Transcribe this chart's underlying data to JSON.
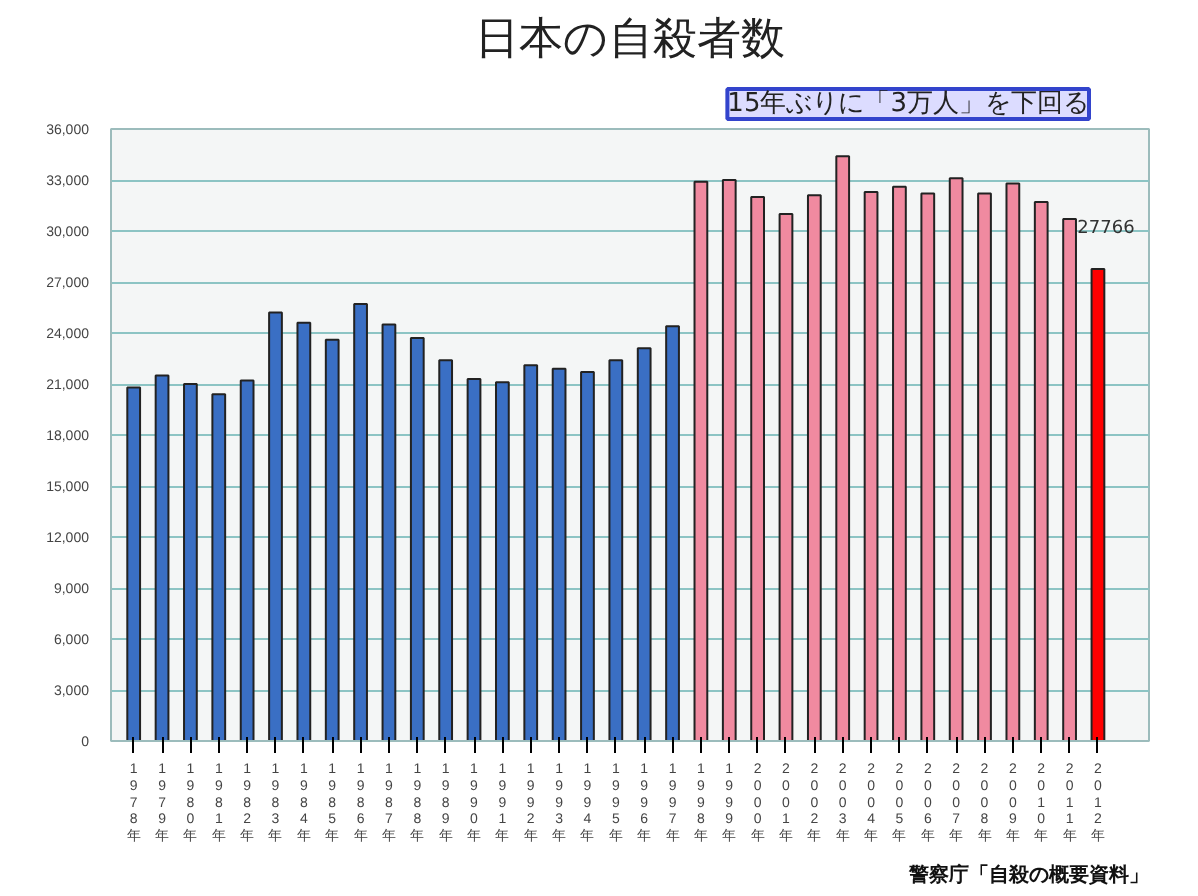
{
  "chart_data": {
    "type": "bar",
    "title": "日本の自殺者数",
    "categories": [
      "1978年",
      "1979年",
      "1980年",
      "1981年",
      "1982年",
      "1983年",
      "1984年",
      "1985年",
      "1986年",
      "1987年",
      "1988年",
      "1989年",
      "1990年",
      "1991年",
      "1992年",
      "1993年",
      "1994年",
      "1995年",
      "1996年",
      "1997年",
      "1998年",
      "1999年",
      "2000年",
      "2001年",
      "2002年",
      "2003年",
      "2004年",
      "2005年",
      "2006年",
      "2007年",
      "2008年",
      "2009年",
      "2010年",
      "2011年",
      "2012年"
    ],
    "values": [
      20800,
      21500,
      21000,
      20400,
      21200,
      25200,
      24600,
      23600,
      25700,
      24500,
      23700,
      22400,
      21300,
      21100,
      22100,
      21900,
      21700,
      22400,
      23100,
      24400,
      32900,
      33000,
      32000,
      31000,
      32100,
      34400,
      32300,
      32600,
      32200,
      33100,
      32200,
      32800,
      31700,
      30700,
      27766
    ],
    "colors": [
      "#3a6fc4",
      "#3a6fc4",
      "#3a6fc4",
      "#3a6fc4",
      "#3a6fc4",
      "#3a6fc4",
      "#3a6fc4",
      "#3a6fc4",
      "#3a6fc4",
      "#3a6fc4",
      "#3a6fc4",
      "#3a6fc4",
      "#3a6fc4",
      "#3a6fc4",
      "#3a6fc4",
      "#3a6fc4",
      "#3a6fc4",
      "#3a6fc4",
      "#3a6fc4",
      "#3a6fc4",
      "#f08aa0",
      "#f08aa0",
      "#f08aa0",
      "#f08aa0",
      "#f08aa0",
      "#f08aa0",
      "#f08aa0",
      "#f08aa0",
      "#f08aa0",
      "#f08aa0",
      "#f08aa0",
      "#f08aa0",
      "#f08aa0",
      "#f08aa0",
      "#ff0000"
    ],
    "value_labels": [
      null,
      null,
      null,
      null,
      null,
      null,
      null,
      null,
      null,
      null,
      null,
      null,
      null,
      null,
      null,
      null,
      null,
      null,
      null,
      null,
      null,
      null,
      null,
      null,
      null,
      null,
      null,
      null,
      null,
      null,
      null,
      null,
      null,
      null,
      "27766"
    ],
    "ylim": [
      0,
      36000
    ],
    "yticks": [
      0,
      {
        "value": 3000,
        "label": "3,000"
      },
      {
        "value": 6000,
        "label": "6,000"
      },
      {
        "value": 9000,
        "label": "9,000"
      },
      {
        "value": 12000,
        "label": "12,000"
      },
      {
        "value": 15000,
        "label": "15,000"
      },
      {
        "value": 18000,
        "label": "18,000"
      },
      {
        "value": 21000,
        "label": "21,000"
      },
      {
        "value": 24000,
        "label": "24,000"
      },
      {
        "value": 27000,
        "label": "27,000"
      },
      {
        "value": 30000,
        "label": "30,000"
      },
      {
        "value": 33000,
        "label": "33,000"
      },
      {
        "value": 36000,
        "label": "36,000"
      }
    ],
    "grid": "y",
    "annotations": [
      "15年ぶりに「3万人」を下回る",
      "警察庁「自殺の概要資料」"
    ]
  }
}
